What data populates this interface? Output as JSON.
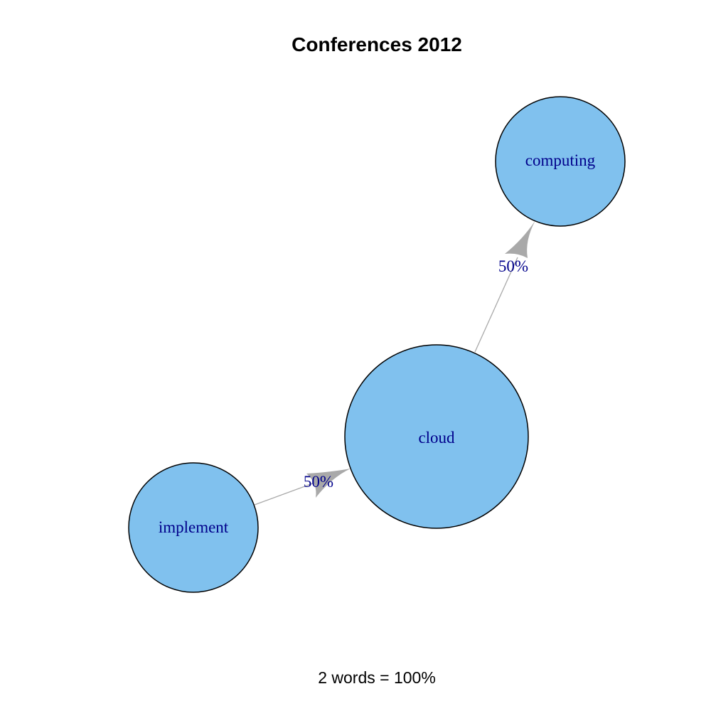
{
  "title": "Conferences 2012",
  "footer": "2 words = 100%",
  "colors": {
    "node_fill": "#80C1EE",
    "node_stroke": "#000000",
    "edge": "#A9A9A9",
    "label": "#00008B",
    "title": "#000000"
  },
  "nodes": [
    {
      "id": "implement",
      "label": "implement"
    },
    {
      "id": "cloud",
      "label": "cloud"
    },
    {
      "id": "computing",
      "label": "computing"
    }
  ],
  "edges": [
    {
      "from": "implement",
      "to": "cloud",
      "label": "50%"
    },
    {
      "from": "cloud",
      "to": "computing",
      "label": "50%"
    }
  ]
}
